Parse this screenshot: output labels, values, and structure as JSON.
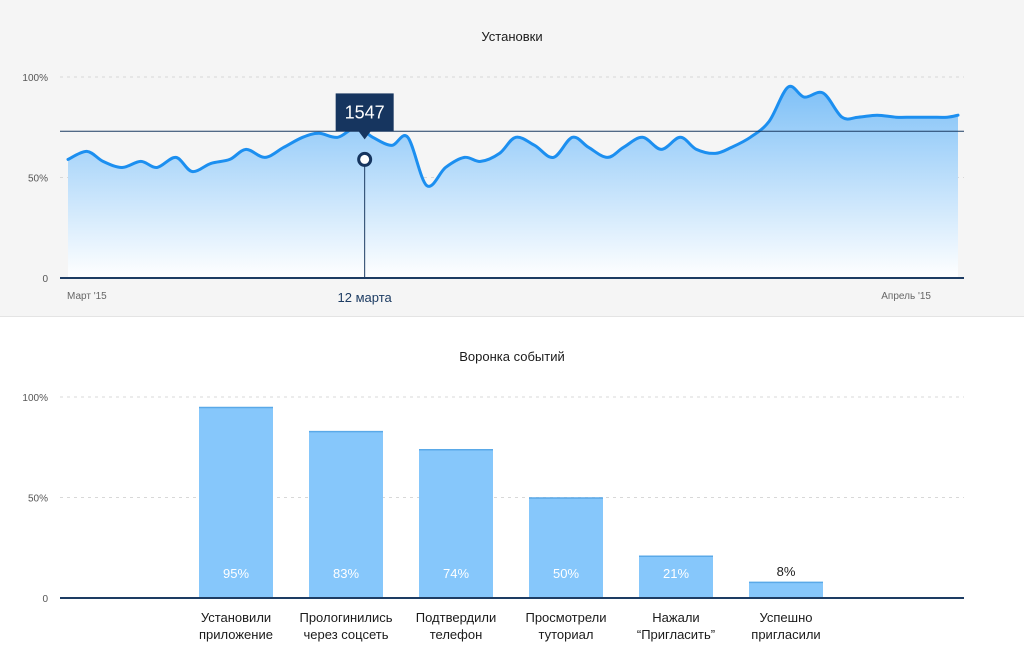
{
  "chart_data": [
    {
      "type": "area",
      "title": "Установки",
      "y_ticks": [
        "100%",
        "50%",
        "0"
      ],
      "x_ticks": [
        "Март '15",
        "Апрель '15"
      ],
      "ylim": [
        0,
        100
      ],
      "x": [
        1,
        1.7,
        2.3,
        3,
        3.7,
        4.3,
        5,
        5.6,
        6.3,
        7,
        7.6,
        8.3,
        9,
        9.7,
        10.3,
        11,
        11.7,
        12.3,
        13,
        13.6,
        14.3,
        15,
        15.7,
        16.3,
        17,
        17.6,
        18.3,
        19,
        19.7,
        20.3,
        21,
        21.6,
        22.3,
        23,
        23.7,
        24.3,
        25,
        25.6,
        26.3,
        27,
        27.7,
        28.3,
        29,
        29.7,
        30.3,
        31,
        31.7,
        32.3,
        33,
        33.6,
        34
      ],
      "values": [
        59,
        63,
        58,
        55,
        58,
        55,
        60,
        53,
        57,
        59,
        64,
        60,
        65,
        70,
        72,
        70,
        75,
        70,
        66,
        70,
        46,
        55,
        60,
        58,
        62,
        70,
        66,
        60,
        70,
        65,
        60,
        65,
        70,
        64,
        70,
        64,
        62,
        65,
        70,
        78,
        95,
        90,
        92,
        80,
        80,
        81,
        80,
        80,
        80,
        80,
        81
      ],
      "reference_line": 73,
      "highlight": {
        "date": "12 марта",
        "value": "1547",
        "x": 12
      },
      "grid": true,
      "color": "#1c8ff0"
    },
    {
      "type": "bar",
      "title": "Воронка событий",
      "y_ticks": [
        "100%",
        "50%",
        "0"
      ],
      "ylim": [
        0,
        100
      ],
      "categories": [
        [
          "Установили",
          "приложение"
        ],
        [
          "Прологинились",
          "через соцсеть"
        ],
        [
          "Подтвердили",
          "телефон"
        ],
        [
          "Просмотрели",
          "туториал"
        ],
        [
          "Нажали",
          "“Пригласить”"
        ],
        [
          "Успешно",
          "пригласили"
        ]
      ],
      "values": [
        95,
        83,
        74,
        50,
        21,
        8
      ],
      "labels": [
        "95%",
        "83%",
        "74%",
        "50%",
        "21%",
        "8%"
      ],
      "bar_color": "#86c7fb",
      "grid": true
    }
  ]
}
